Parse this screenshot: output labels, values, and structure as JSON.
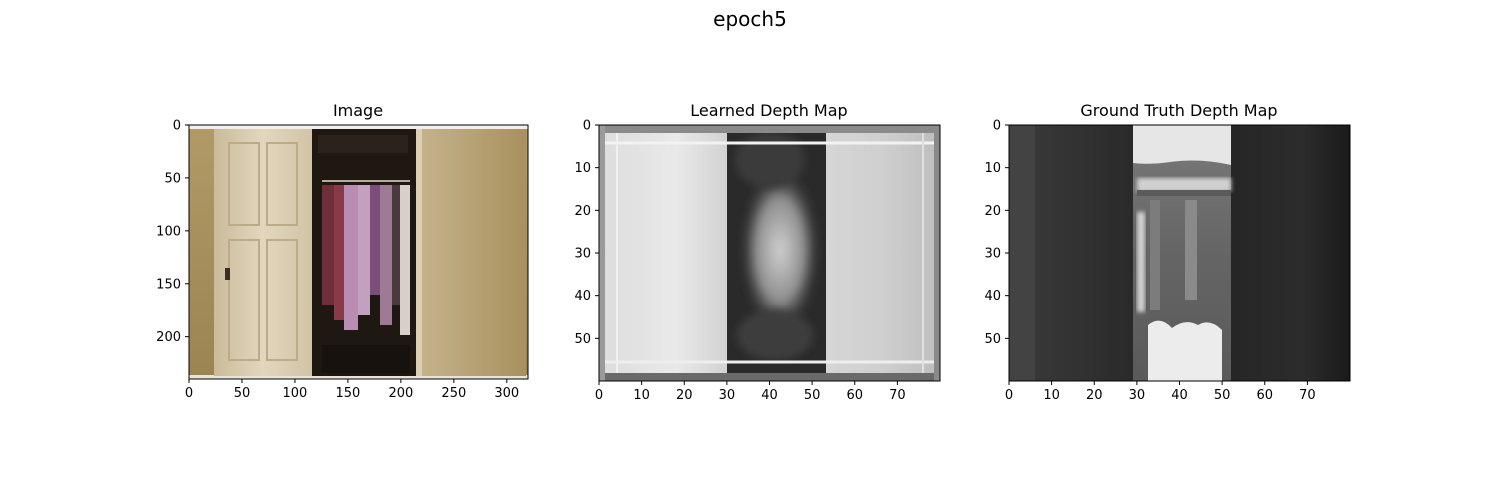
{
  "figure": {
    "suptitle": "epoch5"
  },
  "chart_data": [
    {
      "type": "heatmap",
      "title": "Image",
      "content": "rgb-photo-closet",
      "image_size": [
        320,
        240
      ],
      "xlim": [
        0,
        320
      ],
      "ylim": [
        240,
        0
      ],
      "xticks": [
        0,
        50,
        100,
        150,
        200,
        250,
        300
      ],
      "yticks": [
        0,
        50,
        100,
        150,
        200
      ],
      "colors": {
        "wall": "#a9905d",
        "door": "#ddd0b6",
        "closet_dark": "#1e1712",
        "clothes_pink": "#b98cb4",
        "clothes_red": "#6e2f3a"
      }
    },
    {
      "type": "heatmap",
      "title": "Learned Depth Map",
      "colormap": "gray",
      "image_size": [
        80,
        60
      ],
      "xlim": [
        0,
        80
      ],
      "ylim": [
        60,
        0
      ],
      "xticks": [
        0,
        10,
        20,
        30,
        40,
        50,
        60,
        70
      ],
      "yticks": [
        0,
        10,
        20,
        30,
        40,
        50
      ]
    },
    {
      "type": "heatmap",
      "title": "Ground Truth Depth Map",
      "colormap": "gray",
      "image_size": [
        80,
        60
      ],
      "xlim": [
        0,
        80
      ],
      "ylim": [
        60,
        0
      ],
      "xticks": [
        0,
        10,
        20,
        30,
        40,
        50,
        60,
        70
      ],
      "yticks": [
        0,
        10,
        20,
        30,
        40,
        50
      ]
    }
  ]
}
